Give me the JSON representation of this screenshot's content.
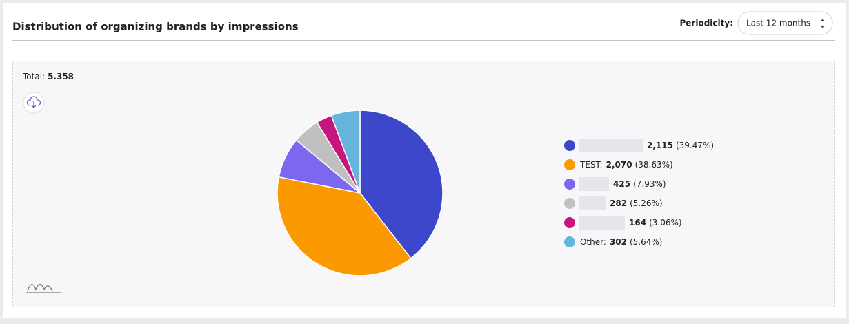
{
  "header": {
    "title": "Distribution of organizing brands by impressions",
    "periodicity_label": "Periodicity:",
    "periodicity_value": "Last 12 months"
  },
  "chart_data": {
    "type": "pie",
    "total_label": "Total:",
    "total": "5.358",
    "categories": [
      null,
      "TEST:",
      null,
      null,
      null,
      "Other:"
    ],
    "values": [
      2115,
      2070,
      425,
      282,
      164,
      302
    ],
    "value_labels": [
      "2,115",
      "2,070",
      "425",
      "282",
      "164",
      "302"
    ],
    "percent_labels": [
      "(39.47%)",
      "(38.63%)",
      "(7.93%)",
      "(5.26%)",
      "(3.06%)",
      "(5.64%)"
    ],
    "colors": [
      "#3d47c9",
      "#fb9a00",
      "#7b68ee",
      "#c0c0c0",
      "#c7157f",
      "#66b5dc"
    ],
    "legend": "right"
  }
}
